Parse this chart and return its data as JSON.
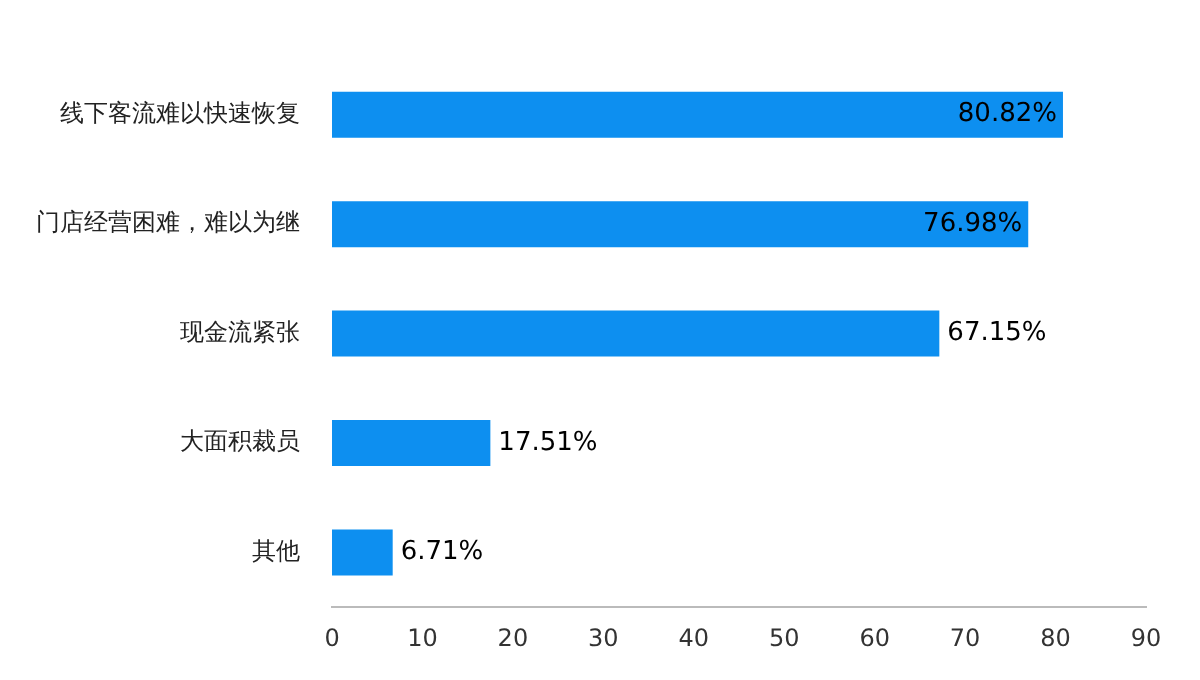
{
  "chart_data": {
    "type": "bar",
    "orientation": "horizontal",
    "categories": [
      "线下客流难以快速恢复",
      "门店经营困难，难以为继",
      "现金流紧张",
      "大面积裁员",
      "其他"
    ],
    "values": [
      80.82,
      76.98,
      67.15,
      17.51,
      6.71
    ],
    "value_labels": [
      "80.82%",
      "76.98%",
      "67.15%",
      "17.51%",
      "6.71%"
    ],
    "color": "#0d8ff0",
    "xlim": [
      0,
      90
    ],
    "xticks": [
      0,
      10,
      20,
      30,
      40,
      50,
      60,
      70,
      80,
      90
    ],
    "grid": false,
    "legend": false
  }
}
